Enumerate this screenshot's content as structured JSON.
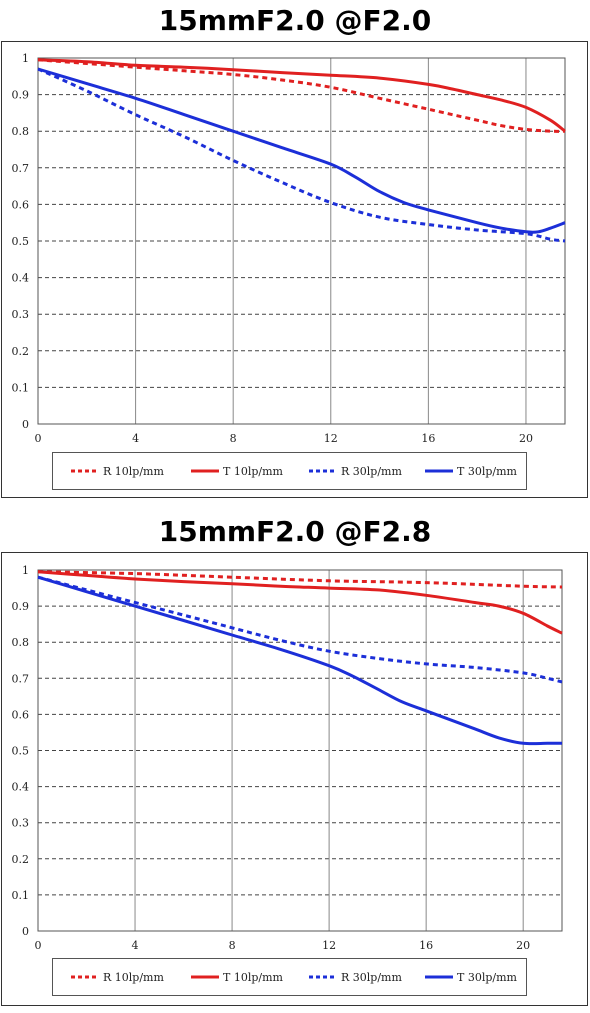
{
  "chart_data": [
    {
      "type": "line",
      "title": "15mmF2.0 @F2.0",
      "xlabel": "",
      "ylabel": "",
      "xlim": [
        0,
        21.6
      ],
      "ylim": [
        0,
        1
      ],
      "x_ticks": [
        "0",
        "4",
        "8",
        "12",
        "16",
        "20"
      ],
      "y_ticks": [
        "0",
        "0.1",
        "0.2",
        "0.3",
        "0.4",
        "0.5",
        "0.6",
        "0.7",
        "0.8",
        "0.9",
        "1"
      ],
      "grid": true,
      "legend_position": "bottom",
      "series": [
        {
          "name": "R 10lp/mm",
          "color": "#e02020",
          "style": "dotted",
          "x": [
            0,
            2,
            4,
            6,
            8,
            10,
            12,
            14,
            16,
            18,
            19,
            20,
            21,
            21.6
          ],
          "y": [
            0.995,
            0.985,
            0.975,
            0.965,
            0.955,
            0.94,
            0.92,
            0.89,
            0.86,
            0.83,
            0.815,
            0.805,
            0.8,
            0.8
          ]
        },
        {
          "name": "T 10lp/mm",
          "color": "#e02020",
          "style": "solid",
          "x": [
            0,
            2,
            4,
            6,
            8,
            10,
            12,
            14,
            16,
            17,
            18,
            19,
            20,
            21,
            21.6
          ],
          "y": [
            0.995,
            0.99,
            0.98,
            0.975,
            0.968,
            0.96,
            0.953,
            0.945,
            0.928,
            0.915,
            0.9,
            0.885,
            0.865,
            0.83,
            0.8
          ]
        },
        {
          "name": "R 30lp/mm",
          "color": "#1c2fd8",
          "style": "dotted",
          "x": [
            0,
            2,
            4,
            6,
            8,
            10,
            12,
            14,
            16,
            18,
            20,
            21,
            21.6
          ],
          "y": [
            0.97,
            0.91,
            0.845,
            0.785,
            0.72,
            0.66,
            0.605,
            0.565,
            0.545,
            0.53,
            0.52,
            0.505,
            0.5
          ]
        },
        {
          "name": "T 30lp/mm",
          "color": "#1c2fd8",
          "style": "solid",
          "x": [
            0,
            2,
            4,
            6,
            8,
            10,
            12,
            13,
            14,
            15,
            16,
            18,
            19,
            20,
            20.5,
            21,
            21.6
          ],
          "y": [
            0.97,
            0.93,
            0.89,
            0.845,
            0.8,
            0.755,
            0.71,
            0.675,
            0.635,
            0.605,
            0.585,
            0.55,
            0.535,
            0.525,
            0.525,
            0.535,
            0.55
          ]
        }
      ]
    },
    {
      "type": "line",
      "title": "15mmF2.0 @F2.8",
      "xlabel": "",
      "ylabel": "",
      "xlim": [
        0,
        21.6
      ],
      "ylim": [
        0,
        1
      ],
      "x_ticks": [
        "0",
        "4",
        "8",
        "12",
        "16",
        "20"
      ],
      "y_ticks": [
        "0",
        "0.1",
        "0.2",
        "0.3",
        "0.4",
        "0.5",
        "0.6",
        "0.7",
        "0.8",
        "0.9",
        "1"
      ],
      "grid": true,
      "legend_position": "bottom",
      "series": [
        {
          "name": "R 10lp/mm",
          "color": "#e02020",
          "style": "dotted",
          "x": [
            0,
            4,
            8,
            12,
            16,
            20,
            21.6
          ],
          "y": [
            0.995,
            0.99,
            0.98,
            0.97,
            0.965,
            0.955,
            0.953
          ]
        },
        {
          "name": "T 10lp/mm",
          "color": "#e02020",
          "style": "solid",
          "x": [
            0,
            2,
            4,
            6,
            8,
            10,
            12,
            14,
            16,
            18,
            19,
            20,
            21,
            21.6
          ],
          "y": [
            0.995,
            0.985,
            0.975,
            0.968,
            0.962,
            0.955,
            0.95,
            0.945,
            0.93,
            0.91,
            0.9,
            0.88,
            0.845,
            0.825
          ]
        },
        {
          "name": "R 30lp/mm",
          "color": "#1c2fd8",
          "style": "dotted",
          "x": [
            0,
            2,
            4,
            6,
            8,
            10,
            12,
            14,
            16,
            18,
            20,
            21,
            21.6
          ],
          "y": [
            0.98,
            0.945,
            0.91,
            0.875,
            0.84,
            0.805,
            0.775,
            0.755,
            0.74,
            0.73,
            0.715,
            0.7,
            0.69
          ]
        },
        {
          "name": "T 30lp/mm",
          "color": "#1c2fd8",
          "style": "solid",
          "x": [
            0,
            2,
            4,
            6,
            8,
            10,
            12,
            13,
            14,
            15,
            16,
            17,
            18,
            19,
            20,
            21,
            21.6
          ],
          "y": [
            0.98,
            0.94,
            0.9,
            0.86,
            0.82,
            0.78,
            0.735,
            0.705,
            0.67,
            0.635,
            0.61,
            0.585,
            0.56,
            0.535,
            0.52,
            0.52,
            0.52
          ]
        }
      ]
    }
  ],
  "legend": [
    {
      "label": "R 10lp/mm",
      "color": "#e02020",
      "style": "dotted"
    },
    {
      "label": "T 10lp/mm",
      "color": "#e02020",
      "style": "solid"
    },
    {
      "label": "R 30lp/mm",
      "color": "#1c2fd8",
      "style": "dotted"
    },
    {
      "label": "T 30lp/mm",
      "color": "#1c2fd8",
      "style": "solid"
    }
  ],
  "colors": {
    "grid": "#444444",
    "axis": "#555555"
  }
}
